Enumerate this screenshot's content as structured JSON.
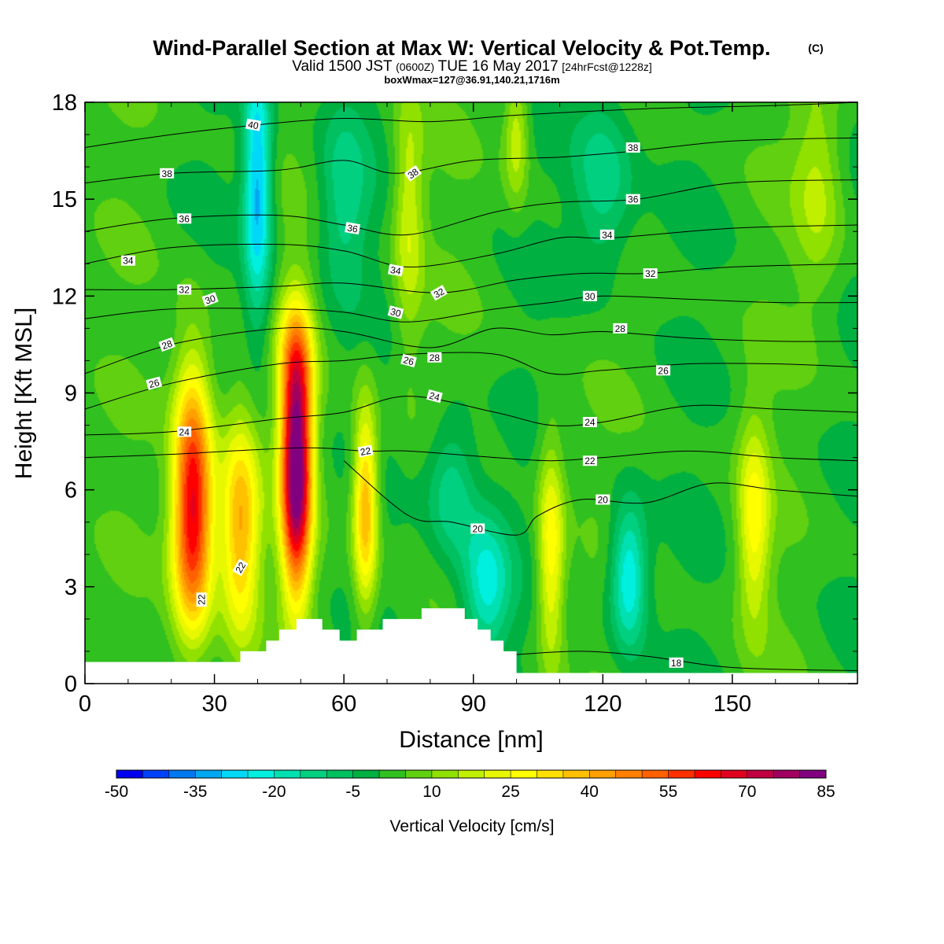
{
  "header": {
    "title_main": "Wind-Parallel Section at Max W: Vertical Velocity & Pot.Temp.",
    "title_copyright": "(C)",
    "valid_prefix": "Valid 1500 JST",
    "valid_zulu": "(0600Z)",
    "valid_date": "TUE 16 May 2017",
    "forecast_run": "[24hrFcst@1228z]",
    "box_info": "boxWmax=127@36.91,140.21,1716m"
  },
  "chart_data": {
    "type": "heatmap",
    "xlabel": "Distance [nm]",
    "ylabel": "Height [Kft MSL]",
    "xlim": [
      0,
      179
    ],
    "ylim": [
      0,
      18
    ],
    "x_ticks": [
      0,
      30,
      60,
      90,
      120,
      150
    ],
    "y_ticks": [
      0,
      3,
      6,
      9,
      12,
      15,
      18
    ],
    "colorbar": {
      "label": "Vertical Velocity [cm/s]",
      "tick_values": [
        "-50",
        "-35",
        "-20",
        "-5",
        "10",
        "25",
        "40",
        "55",
        "70",
        "85"
      ],
      "min": -50,
      "max": 85,
      "step": 5,
      "colors": [
        "#0000f0",
        "#0040f8",
        "#0078f0",
        "#00a8f0",
        "#00d8f8",
        "#00f0e0",
        "#00e0b0",
        "#00d080",
        "#00c060",
        "#00b040",
        "#30c020",
        "#60d010",
        "#90e000",
        "#c0f000",
        "#e8f800",
        "#ffff00",
        "#ffe000",
        "#ffc000",
        "#ffa000",
        "#ff8000",
        "#ff6000",
        "#ff3000",
        "#ff0000",
        "#e00020",
        "#c00040",
        "#a00060",
        "#800080"
      ]
    },
    "vertical_velocity_cells": [
      {
        "x": 25,
        "z": 6.5,
        "w": 52,
        "sx": 3.2,
        "sz": 2.6
      },
      {
        "x": 25,
        "z": 3.8,
        "w": 28,
        "sx": 3.5,
        "sz": 2.0
      },
      {
        "x": 36,
        "z": 4.8,
        "w": 40,
        "sx": 3.2,
        "sz": 2.4
      },
      {
        "x": 49,
        "z": 6.5,
        "w": 85,
        "sx": 2.5,
        "sz": 2.6
      },
      {
        "x": 49,
        "z": 10.0,
        "w": 25,
        "sx": 3.0,
        "sz": 1.5
      },
      {
        "x": 65,
        "z": 5.5,
        "w": 40,
        "sx": 2.0,
        "sz": 2.2
      },
      {
        "x": 108,
        "z": 4.0,
        "w": 28,
        "sx": 2.2,
        "sz": 2.5
      },
      {
        "x": 155,
        "z": 5.0,
        "w": 25,
        "sx": 2.6,
        "sz": 2.2
      },
      {
        "x": 40,
        "z": 15.5,
        "w": -35,
        "sx": 2.3,
        "sz": 3.0
      },
      {
        "x": 93,
        "z": 3.0,
        "w": -25,
        "sx": 4.0,
        "sz": 1.6
      },
      {
        "x": 126,
        "z": 3.3,
        "w": -30,
        "sx": 3.0,
        "sz": 1.6
      },
      {
        "x": 85,
        "z": 6.0,
        "w": -18,
        "sx": 4.0,
        "sz": 1.6
      },
      {
        "x": 75,
        "z": 14.5,
        "w": 18,
        "sx": 2.5,
        "sz": 2.8
      },
      {
        "x": 100,
        "z": 17.0,
        "w": 18,
        "sx": 2.0,
        "sz": 1.5
      },
      {
        "x": 60,
        "z": 15.0,
        "w": -15,
        "sx": 4.0,
        "sz": 2.0
      },
      {
        "x": 120,
        "z": 15.5,
        "w": -18,
        "sx": 5.0,
        "sz": 2.0
      },
      {
        "x": 170,
        "z": 15.5,
        "w": 14,
        "sx": 4.0,
        "sz": 2.5
      }
    ],
    "terrain_profile": [
      [
        0,
        0.67
      ],
      [
        36,
        0.67
      ],
      [
        36,
        1.0
      ],
      [
        42,
        1.0
      ],
      [
        42,
        1.33
      ],
      [
        45,
        1.33
      ],
      [
        45,
        1.67
      ],
      [
        49,
        1.67
      ],
      [
        49,
        2.0
      ],
      [
        55,
        2.0
      ],
      [
        55,
        1.67
      ],
      [
        59,
        1.67
      ],
      [
        59,
        1.33
      ],
      [
        63,
        1.33
      ],
      [
        63,
        1.67
      ],
      [
        69,
        1.67
      ],
      [
        69,
        2.0
      ],
      [
        78,
        2.0
      ],
      [
        78,
        2.33
      ],
      [
        88,
        2.33
      ],
      [
        88,
        2.0
      ],
      [
        91,
        2.0
      ],
      [
        91,
        1.67
      ],
      [
        94,
        1.67
      ],
      [
        94,
        1.33
      ],
      [
        97,
        1.33
      ],
      [
        97,
        1.0
      ],
      [
        100,
        1.0
      ],
      [
        100,
        0.33
      ],
      [
        179,
        0.33
      ]
    ],
    "potential_temperature_contours": [
      {
        "value": 18,
        "points": [
          [
            100,
            0.9
          ],
          [
            115,
            1.0
          ],
          [
            130,
            0.85
          ],
          [
            150,
            0.5
          ],
          [
            179,
            0.4
          ]
        ]
      },
      {
        "value": 20,
        "points": [
          [
            60,
            6.9
          ],
          [
            75,
            5.2
          ],
          [
            85,
            5.0
          ],
          [
            100,
            4.6
          ],
          [
            105,
            5.2
          ],
          [
            115,
            5.7
          ],
          [
            130,
            5.6
          ],
          [
            145,
            6.2
          ],
          [
            160,
            6.0
          ],
          [
            179,
            5.8
          ]
        ]
      },
      {
        "value": 22,
        "points": [
          [
            0,
            7.0
          ],
          [
            20,
            7.1
          ],
          [
            50,
            7.3
          ],
          [
            65,
            7.2
          ],
          [
            75,
            7.2
          ],
          [
            95,
            7.0
          ],
          [
            108,
            6.9
          ],
          [
            120,
            7.0
          ],
          [
            140,
            7.2
          ],
          [
            160,
            7.0
          ],
          [
            179,
            6.9
          ]
        ]
      },
      {
        "value": 24,
        "points": [
          [
            0,
            7.7
          ],
          [
            20,
            7.8
          ],
          [
            45,
            8.2
          ],
          [
            60,
            8.4
          ],
          [
            75,
            8.9
          ],
          [
            95,
            8.4
          ],
          [
            108,
            8.0
          ],
          [
            120,
            8.1
          ],
          [
            140,
            8.6
          ],
          [
            160,
            8.5
          ],
          [
            179,
            8.4
          ]
        ]
      },
      {
        "value": 26,
        "points": [
          [
            0,
            8.5
          ],
          [
            20,
            9.3
          ],
          [
            45,
            9.9
          ],
          [
            60,
            10.0
          ],
          [
            75,
            10.2
          ],
          [
            95,
            10.2
          ],
          [
            108,
            9.6
          ],
          [
            120,
            9.7
          ],
          [
            140,
            9.9
          ],
          [
            160,
            9.9
          ],
          [
            179,
            9.8
          ]
        ]
      },
      {
        "value": 28,
        "points": [
          [
            0,
            9.6
          ],
          [
            20,
            10.5
          ],
          [
            45,
            11.0
          ],
          [
            60,
            10.9
          ],
          [
            80,
            10.4
          ],
          [
            95,
            11.0
          ],
          [
            108,
            10.8
          ],
          [
            120,
            10.9
          ],
          [
            140,
            10.7
          ],
          [
            160,
            10.6
          ],
          [
            179,
            10.6
          ]
        ]
      },
      {
        "value": 30,
        "points": [
          [
            0,
            11.3
          ],
          [
            20,
            11.6
          ],
          [
            45,
            11.6
          ],
          [
            60,
            11.5
          ],
          [
            75,
            11.2
          ],
          [
            95,
            11.6
          ],
          [
            108,
            11.8
          ],
          [
            120,
            12.0
          ],
          [
            140,
            11.9
          ],
          [
            160,
            11.8
          ],
          [
            179,
            11.8
          ]
        ]
      },
      {
        "value": 32,
        "points": [
          [
            0,
            12.2
          ],
          [
            20,
            12.2
          ],
          [
            45,
            12.3
          ],
          [
            60,
            12.4
          ],
          [
            82,
            12.1
          ],
          [
            100,
            12.5
          ],
          [
            115,
            12.7
          ],
          [
            130,
            12.7
          ],
          [
            150,
            12.9
          ],
          [
            179,
            13.0
          ]
        ]
      },
      {
        "value": 34,
        "points": [
          [
            0,
            13.0
          ],
          [
            20,
            13.5
          ],
          [
            45,
            13.6
          ],
          [
            60,
            13.4
          ],
          [
            75,
            12.9
          ],
          [
            95,
            13.3
          ],
          [
            110,
            13.8
          ],
          [
            122,
            13.8
          ],
          [
            150,
            14.1
          ],
          [
            179,
            14.2
          ]
        ]
      },
      {
        "value": 36,
        "points": [
          [
            0,
            14.0
          ],
          [
            20,
            14.4
          ],
          [
            45,
            14.5
          ],
          [
            60,
            14.2
          ],
          [
            75,
            13.9
          ],
          [
            95,
            14.6
          ],
          [
            110,
            14.9
          ],
          [
            128,
            15.0
          ],
          [
            150,
            15.5
          ],
          [
            179,
            15.6
          ]
        ]
      },
      {
        "value": 38,
        "points": [
          [
            0,
            15.5
          ],
          [
            20,
            15.8
          ],
          [
            45,
            15.9
          ],
          [
            60,
            16.2
          ],
          [
            72,
            15.8
          ],
          [
            90,
            16.2
          ],
          [
            110,
            16.3
          ],
          [
            128,
            16.5
          ],
          [
            150,
            16.8
          ],
          [
            179,
            16.9
          ]
        ]
      },
      {
        "value": 40,
        "points": [
          [
            0,
            16.6
          ],
          [
            20,
            17.0
          ],
          [
            40,
            17.3
          ],
          [
            60,
            17.5
          ],
          [
            80,
            17.4
          ],
          [
            100,
            17.6
          ],
          [
            130,
            17.8
          ],
          [
            160,
            17.9
          ],
          [
            179,
            18.0
          ]
        ]
      }
    ],
    "contour_labels": [
      {
        "text": "40",
        "x": 39,
        "z": 17.3,
        "rot": 10
      },
      {
        "text": "38",
        "x": 19,
        "z": 15.8,
        "rot": 0
      },
      {
        "text": "38",
        "x": 76,
        "z": 15.8,
        "rot": -35
      },
      {
        "text": "38",
        "x": 127,
        "z": 16.6,
        "rot": 0
      },
      {
        "text": "36",
        "x": 23,
        "z": 14.4,
        "rot": 0
      },
      {
        "text": "36",
        "x": 62,
        "z": 14.1,
        "rot": 10
      },
      {
        "text": "36",
        "x": 127,
        "z": 15.0,
        "rot": 0
      },
      {
        "text": "34",
        "x": 10,
        "z": 13.1,
        "rot": 0
      },
      {
        "text": "34",
        "x": 72,
        "z": 12.8,
        "rot": 10
      },
      {
        "text": "34",
        "x": 121,
        "z": 13.9,
        "rot": 0
      },
      {
        "text": "32",
        "x": 23,
        "z": 12.2,
        "rot": 0
      },
      {
        "text": "32",
        "x": 82,
        "z": 12.1,
        "rot": -30
      },
      {
        "text": "32",
        "x": 131,
        "z": 12.7,
        "rot": 0
      },
      {
        "text": "30",
        "x": 29,
        "z": 11.9,
        "rot": -20
      },
      {
        "text": "30",
        "x": 72,
        "z": 11.5,
        "rot": 15
      },
      {
        "text": "30",
        "x": 117,
        "z": 12.0,
        "rot": 0
      },
      {
        "text": "28",
        "x": 19,
        "z": 10.5,
        "rot": -20
      },
      {
        "text": "28",
        "x": 81,
        "z": 10.1,
        "rot": 0
      },
      {
        "text": "28",
        "x": 124,
        "z": 11.0,
        "rot": 0
      },
      {
        "text": "26",
        "x": 16,
        "z": 9.3,
        "rot": -15
      },
      {
        "text": "26",
        "x": 75,
        "z": 10.0,
        "rot": 15
      },
      {
        "text": "26",
        "x": 134,
        "z": 9.7,
        "rot": 0
      },
      {
        "text": "24",
        "x": 23,
        "z": 7.8,
        "rot": 0
      },
      {
        "text": "24",
        "x": 81,
        "z": 8.9,
        "rot": 15
      },
      {
        "text": "24",
        "x": 117,
        "z": 8.1,
        "rot": 0
      },
      {
        "text": "22",
        "x": 65,
        "z": 7.2,
        "rot": -10
      },
      {
        "text": "22",
        "x": 117,
        "z": 6.9,
        "rot": 0
      },
      {
        "text": "22",
        "x": 36,
        "z": 3.6,
        "rot": -60
      },
      {
        "text": "22",
        "x": 27,
        "z": 2.6,
        "rot": -90
      },
      {
        "text": "20",
        "x": 91,
        "z": 4.8,
        "rot": 0
      },
      {
        "text": "20",
        "x": 120,
        "z": 5.7,
        "rot": 0
      },
      {
        "text": "18",
        "x": 137,
        "z": 0.65,
        "rot": 0
      }
    ]
  }
}
